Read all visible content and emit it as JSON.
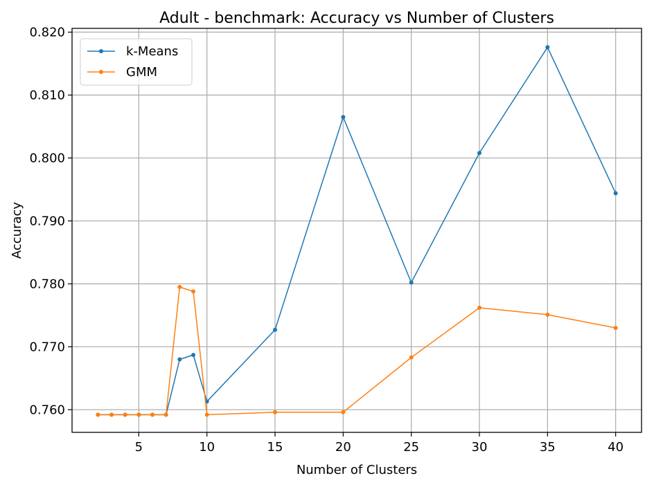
{
  "chart_data": {
    "type": "line",
    "title": "Adult - benchmark: Accuracy vs Number of Clusters",
    "xlabel": "Number of Clusters",
    "ylabel": "Accuracy",
    "xlim": [
      0.1,
      41.9
    ],
    "ylim": [
      0.7564,
      0.8206
    ],
    "xticks": [
      5,
      10,
      15,
      20,
      25,
      30,
      35,
      40
    ],
    "yticks": [
      0.76,
      0.77,
      0.78,
      0.79,
      0.8,
      0.81,
      0.82
    ],
    "ytick_labels": [
      "0.760",
      "0.770",
      "0.780",
      "0.790",
      "0.800",
      "0.810",
      "0.820"
    ],
    "grid": true,
    "legend_position": "top-left",
    "x": [
      2,
      3,
      4,
      5,
      6,
      7,
      8,
      9,
      10,
      15,
      20,
      25,
      30,
      35,
      40
    ],
    "series": [
      {
        "name": "k-Means",
        "color": "#1f77b4",
        "values": [
          0.7592,
          0.7592,
          0.7592,
          0.7592,
          0.7592,
          0.7592,
          0.768,
          0.7687,
          0.7613,
          0.7727,
          0.8065,
          0.7802,
          0.8008,
          0.8176,
          0.7944
        ]
      },
      {
        "name": "GMM",
        "color": "#ff7f0e",
        "values": [
          0.7592,
          0.7592,
          0.7592,
          0.7592,
          0.7592,
          0.7592,
          0.7795,
          0.7788,
          0.7592,
          0.7596,
          0.7596,
          0.7683,
          0.7762,
          0.7751,
          0.773
        ]
      }
    ]
  }
}
